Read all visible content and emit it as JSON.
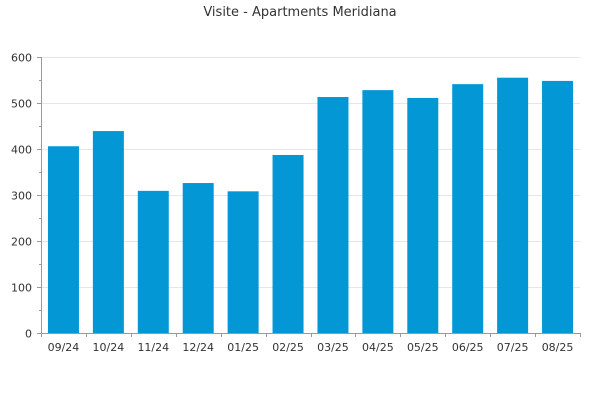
{
  "chart_data": {
    "type": "bar",
    "title": "Visite - Apartments Meridiana",
    "xlabel": "",
    "ylabel": "",
    "categories": [
      "09/24",
      "10/24",
      "11/24",
      "12/24",
      "01/25",
      "02/25",
      "03/25",
      "04/25",
      "05/25",
      "06/25",
      "07/25",
      "08/25"
    ],
    "values": [
      406,
      439,
      309,
      326,
      308,
      387,
      513,
      528,
      511,
      541,
      555,
      548
    ],
    "ylim": [
      0,
      600
    ],
    "y_ticks": [
      0,
      100,
      200,
      300,
      400,
      500,
      600
    ],
    "grid": true,
    "legend": "none",
    "colors": {
      "bar": "#0398d5",
      "grid": "#e6e6e6",
      "axis": "#999999",
      "text": "#333333"
    }
  }
}
